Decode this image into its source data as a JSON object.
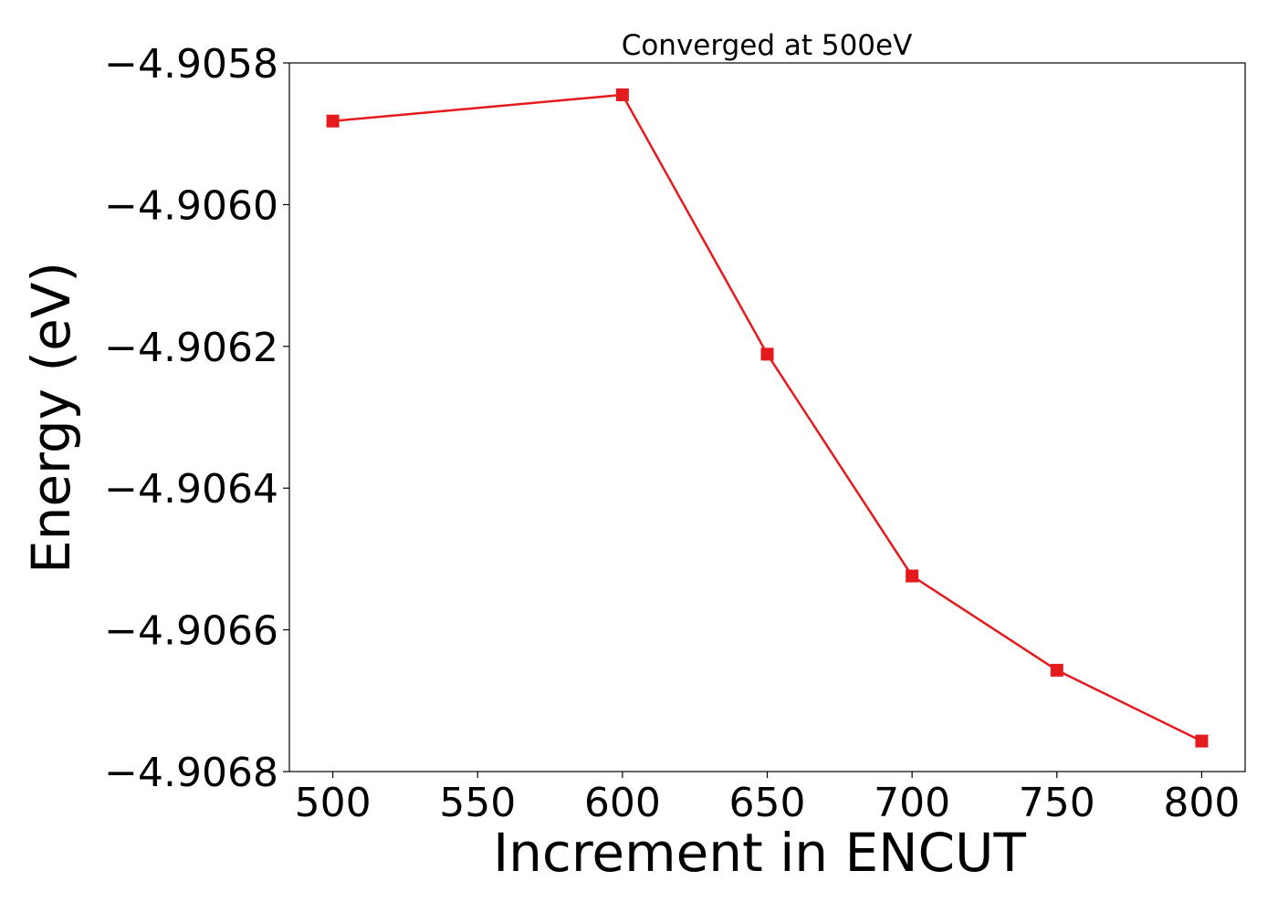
{
  "chart_data": {
    "type": "line",
    "title": "Converged at 500eV",
    "xlabel": "Increment in ENCUT",
    "ylabel": "Energy (eV)",
    "x": [
      500,
      600,
      650,
      700,
      750,
      800
    ],
    "series": [
      {
        "values": [
          -4.905882,
          -4.905845,
          -4.906211,
          -4.906524,
          -4.906657,
          -4.906757
        ]
      }
    ],
    "xticks": [
      500,
      550,
      600,
      650,
      700,
      750,
      800
    ],
    "xtick_labels": [
      "500",
      "550",
      "600",
      "650",
      "700",
      "750",
      "800"
    ],
    "yticks": [
      -4.9058,
      -4.906,
      -4.9062,
      -4.9064,
      -4.9066,
      -4.9068
    ],
    "ytick_labels": [
      "−4.9058",
      "−4.9060",
      "−4.9062",
      "−4.9064",
      "−4.9066",
      "−4.9068"
    ],
    "xlim": [
      485,
      815
    ],
    "ylim": [
      -4.9068,
      -4.9058
    ],
    "grid": false,
    "marker": "square",
    "colors": {
      "series": "#e41a1c",
      "axes": "#000000"
    }
  }
}
